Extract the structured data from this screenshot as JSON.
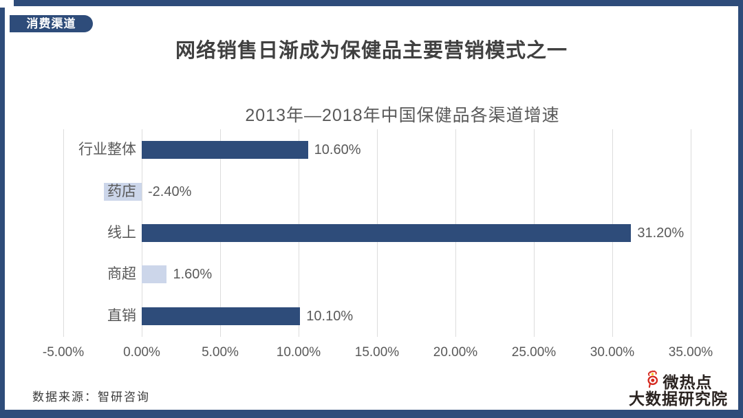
{
  "badge": {
    "label": "消费渠道"
  },
  "header": {
    "title": "网络销售日渐成为保健品主要营销模式之一"
  },
  "chart_data": {
    "type": "bar",
    "orientation": "horizontal",
    "title": "2013年—2018年中国保健品各渠道增速",
    "categories": [
      "行业整体",
      "药店",
      "线上",
      "商超",
      "直销"
    ],
    "values": [
      10.6,
      -2.4,
      31.2,
      1.6,
      10.1
    ],
    "value_labels": [
      "10.60%",
      "-2.40%",
      "31.20%",
      "1.60%",
      "10.10%"
    ],
    "bar_colors": [
      "#2e4c7a",
      "#ccd6ea",
      "#2e4c7a",
      "#ccd6ea",
      "#2e4c7a"
    ],
    "xlabel": "",
    "ylabel": "",
    "xlim": [
      -5,
      35
    ],
    "xticks": [
      -5,
      0,
      5,
      10,
      15,
      20,
      25,
      30,
      35
    ],
    "xtick_labels": [
      "-5.00%",
      "0.00%",
      "5.00%",
      "10.00%",
      "15.00%",
      "20.00%",
      "25.00%",
      "30.00%",
      "35.00%"
    ],
    "grid": true,
    "legend": false
  },
  "footer": {
    "source": "数据来源：智研咨询"
  },
  "logo": {
    "line1": "微热点",
    "line2": "大数据研究院",
    "icon": "weibo-eye-icon",
    "icon_color": "#d5281e",
    "icon_accent": "#f5c51f"
  },
  "colors": {
    "accent_navy": "#2e4c7a",
    "bar_light": "#ccd6ea",
    "gridline": "#dcdcdc",
    "text_gray": "#595959",
    "logo_red": "#d5281e",
    "logo_yellow": "#f5c51f"
  }
}
